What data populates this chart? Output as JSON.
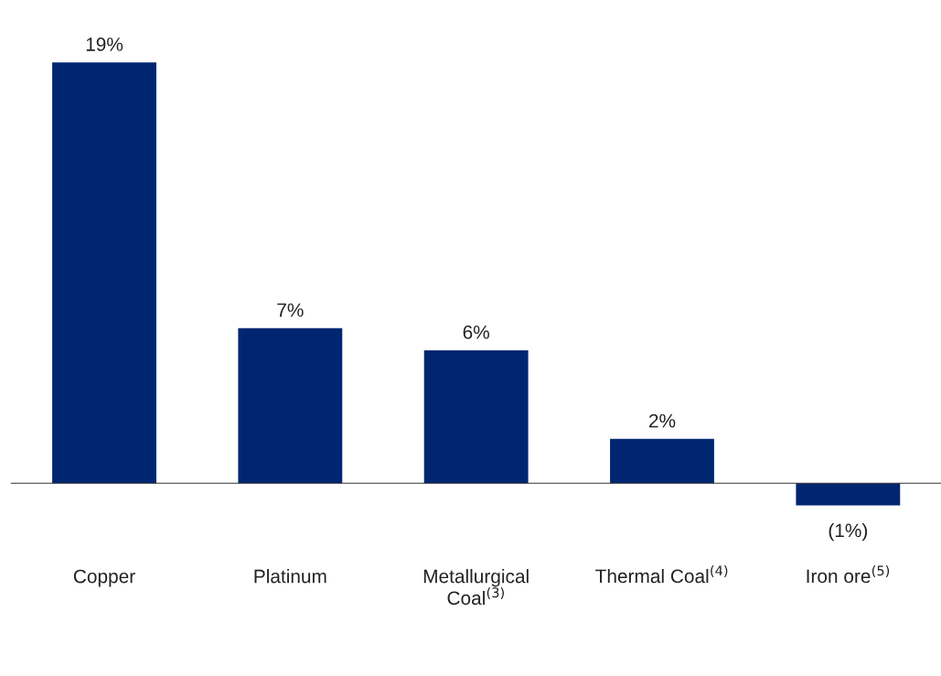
{
  "chart_data": {
    "type": "bar",
    "categories": [
      "Copper",
      "Platinum",
      "Metallurgical\nCoal$^{(3)}$",
      "Thermal Coal$^{(4)}$",
      "Iron ore$^{(5)}$"
    ],
    "values": [
      19,
      7,
      6,
      2,
      -1
    ],
    "value_labels": [
      "19%",
      "7%",
      "6%",
      "2%",
      "(1%)"
    ],
    "color": "#002672"
  }
}
